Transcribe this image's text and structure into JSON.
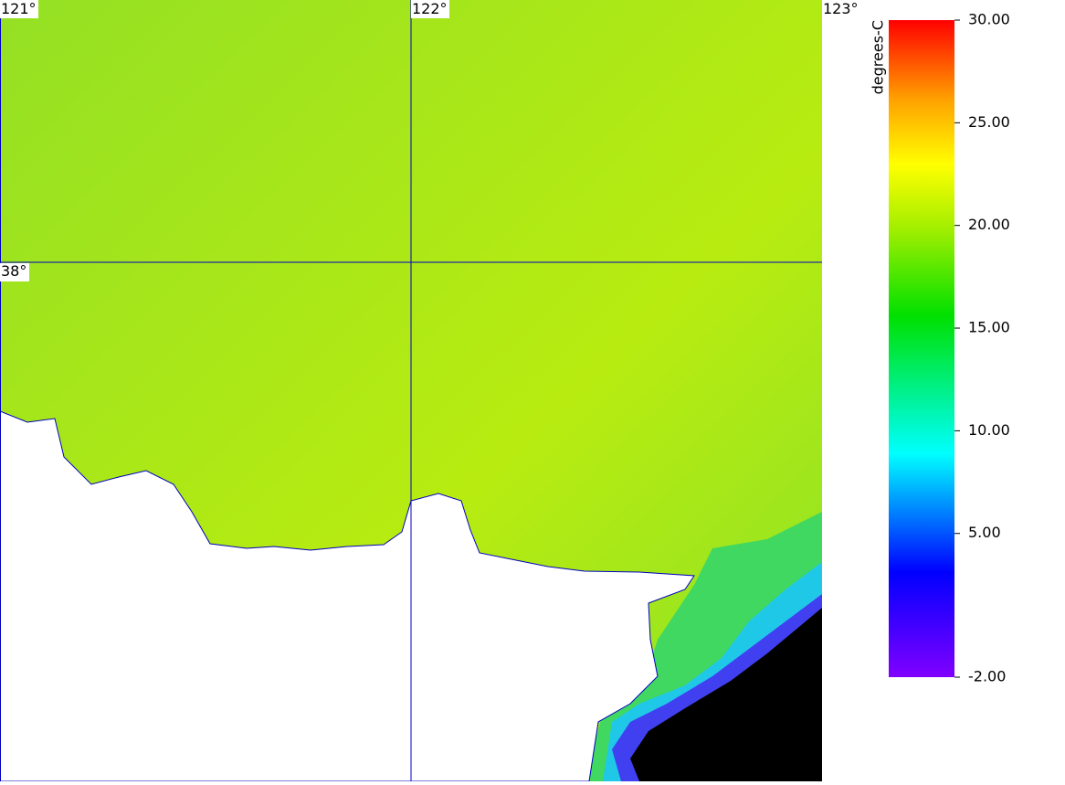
{
  "map": {
    "lon_labels": [
      "121°",
      "122°",
      "123°"
    ],
    "lat_labels": [
      "38°"
    ]
  },
  "colorbar": {
    "label": "degrees-C",
    "lim": [
      -2,
      30
    ],
    "ticks": [
      {
        "value": 30,
        "label": "30.00"
      },
      {
        "value": 25,
        "label": "25.00"
      },
      {
        "value": 20,
        "label": "20.00"
      },
      {
        "value": 15,
        "label": "15.00"
      },
      {
        "value": 10,
        "label": "10.00"
      },
      {
        "value": 5,
        "label": "5.00"
      },
      {
        "value": -2,
        "label": "-2.00"
      }
    ]
  }
}
